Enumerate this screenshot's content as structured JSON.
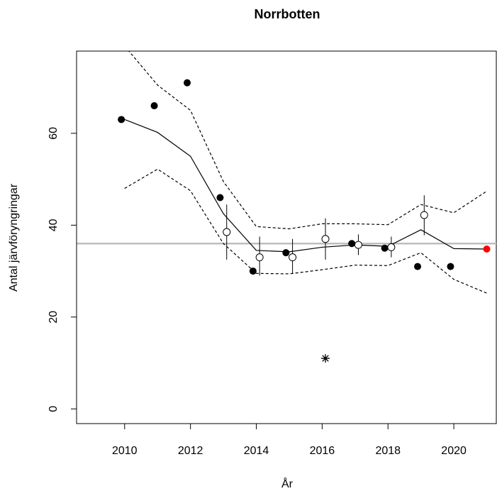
{
  "chart_data": {
    "type": "line",
    "title": "Norrbotten",
    "x_label": "År",
    "y_label": "Antal järvföryngringar",
    "xlim": [
      2008.54,
      2021.29
    ],
    "ylim": [
      -3.2,
      77.9
    ],
    "xticks": [
      2010,
      2012,
      2014,
      2016,
      2018,
      2020
    ],
    "yticks": [
      0,
      20,
      40,
      60
    ],
    "hline": {
      "value": 36,
      "color": "#bebebe"
    },
    "series": [
      {
        "style": "line",
        "color": "#000000",
        "x": [
          2010,
          2011,
          2012,
          2013,
          2014,
          2015,
          2016,
          2017,
          2018,
          2019,
          2020,
          2021
        ],
        "values": [
          63,
          60.2,
          55,
          42.5,
          34.5,
          34.2,
          35.2,
          35.7,
          35.4,
          39,
          34.9,
          34.8
        ]
      },
      {
        "style": "dashed",
        "color": "#000000",
        "x": [
          2010,
          2011,
          2012,
          2013,
          2014,
          2015,
          2016,
          2017,
          2018,
          2019,
          2020,
          2021
        ],
        "values": [
          79,
          70.5,
          65,
          49.5,
          39.7,
          39.2,
          40.3,
          40.3,
          40.1,
          44.5,
          42.7,
          47.4
        ]
      },
      {
        "style": "dashed",
        "color": "#000000",
        "x": [
          2010,
          2011,
          2012,
          2013,
          2014,
          2015,
          2016,
          2017,
          2018,
          2019,
          2020,
          2021
        ],
        "values": [
          48,
          52.2,
          47.5,
          36,
          29.5,
          29.4,
          30.3,
          31.3,
          31.2,
          34,
          28.2,
          25.2
        ]
      },
      {
        "style": "filled",
        "color": "#000000",
        "x": [
          2009.9,
          2010.9,
          2011.9,
          2012.9,
          2013.9,
          2014.9,
          2016.9,
          2017.9,
          2018.9,
          2019.9
        ],
        "values": [
          63,
          66,
          71,
          46,
          30,
          34,
          36,
          35,
          31,
          31
        ]
      },
      {
        "style": "open",
        "color": "#000000",
        "x": [
          2013.1,
          2014.1,
          2015.1,
          2016.1,
          2017.1,
          2018.1,
          2019.1
        ],
        "values": [
          38.5,
          33,
          33,
          37,
          35.7,
          35.2,
          42.2
        ],
        "lower": [
          32.5,
          29,
          29.5,
          32.5,
          33.5,
          33,
          37.8
        ],
        "upper": [
          44.5,
          37.5,
          37,
          41.5,
          38,
          37.5,
          46.5
        ]
      },
      {
        "style": "star",
        "color": "#000000",
        "x": [
          2016.1
        ],
        "values": [
          11
        ]
      },
      {
        "style": "filled",
        "color": "#ff0000",
        "x": [
          2021
        ],
        "values": [
          34.8
        ]
      }
    ]
  }
}
